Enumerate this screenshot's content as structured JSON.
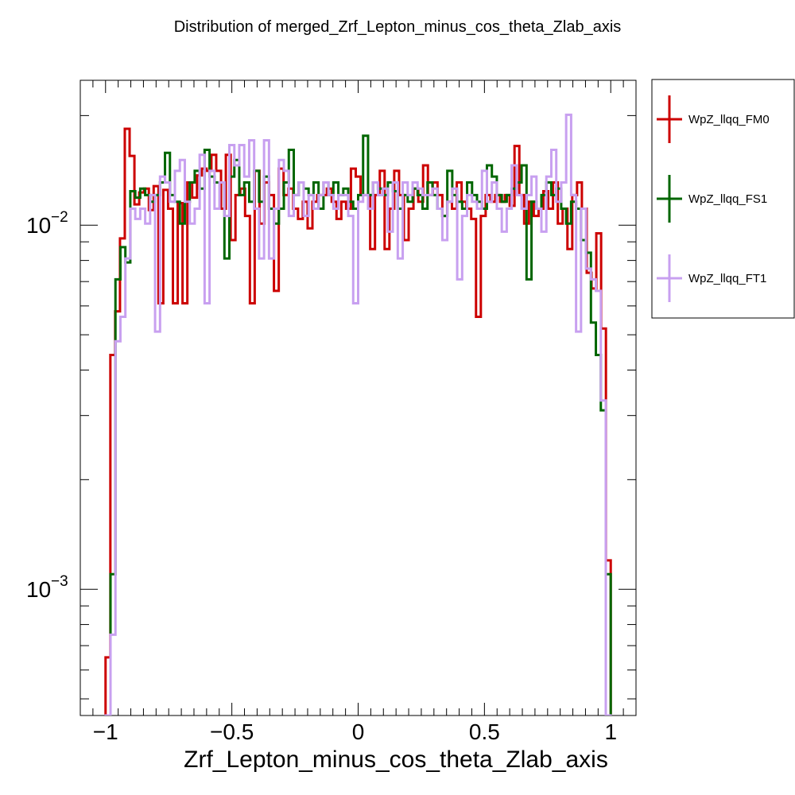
{
  "chart_data": {
    "type": "line",
    "title": "Distribution of merged_Zrf_Lepton_minus_cos_theta_Zlab_axis",
    "xlabel": "Zrf_Lepton_minus_cos_theta_Zlab_axis",
    "ylabel": "",
    "xlim": [
      -1.1,
      1.1
    ],
    "ylim": [
      0.00045,
      0.025
    ],
    "yscale": "log",
    "x_ticks": [
      -1,
      -0.5,
      0,
      0.5,
      1
    ],
    "x_tick_labels": [
      "−1",
      "−0.5",
      "0",
      "0.5",
      "1"
    ],
    "y_tick_labels": [
      {
        "value": 0.01,
        "mantissa": "10",
        "exponent": "−2"
      },
      {
        "value": 0.001,
        "mantissa": "10",
        "exponent": "−3"
      }
    ],
    "bin_range": [
      -1.0,
      1.0
    ],
    "legend_position": "top-right, outside plot",
    "series": [
      {
        "name": "WpZ_llqq_FM0",
        "color": "#cc0000",
        "values": [
          0.00065,
          0.0044,
          0.0058,
          0.0092,
          0.0184,
          0.0155,
          0.0114,
          0.0123,
          0.0126,
          0.011,
          0.0128,
          0.0061,
          0.0125,
          0.0111,
          0.0061,
          0.0115,
          0.0061,
          0.0131,
          0.0119,
          0.0137,
          0.0143,
          0.0141,
          0.0156,
          0.0141,
          0.0111,
          0.0156,
          0.0091,
          0.0121,
          0.0126,
          0.0106,
          0.0061,
          0.0141,
          0.0101,
          0.0131,
          0.0121,
          0.0066,
          0.0143,
          0.0121,
          0.0126,
          0.0111,
          0.0104,
          0.0116,
          0.0098,
          0.0116,
          0.0121,
          0.0121,
          0.0126,
          0.0116,
          0.0104,
          0.0116,
          0.0111,
          0.0143,
          0.0136,
          0.0121,
          0.0121,
          0.0086,
          0.0121,
          0.0141,
          0.0086,
          0.0111,
          0.0141,
          0.0121,
          0.0091,
          0.0111,
          0.0126,
          0.0116,
          0.0146,
          0.0121,
          0.0131,
          0.0121,
          0.0106,
          0.0116,
          0.0111,
          0.0131,
          0.0116,
          0.0111,
          0.0104,
          0.0056,
          0.0106,
          0.0121,
          0.0116,
          0.0121,
          0.0116,
          0.0121,
          0.0113,
          0.0165,
          0.0121,
          0.0101,
          0.0116,
          0.0106,
          0.0111,
          0.0124,
          0.0111,
          0.0131,
          0.0101,
          0.0111,
          0.0086,
          0.0121,
          0.0131,
          0.0111,
          0.0074,
          0.0067,
          0.0095,
          0.0052,
          0.0012
        ]
      },
      {
        "name": "WpZ_llqq_FS1",
        "color": "#006600",
        "values": [
          0.00045,
          0.0011,
          0.0071,
          0.0087,
          0.0079,
          0.0124,
          0.0119,
          0.0126,
          0.0121,
          0.0116,
          0.0121,
          0.0131,
          0.0158,
          0.0121,
          0.0116,
          0.0101,
          0.0116,
          0.0131,
          0.0141,
          0.0126,
          0.0161,
          0.0136,
          0.0131,
          0.0131,
          0.0081,
          0.0136,
          0.0151,
          0.0121,
          0.0131,
          0.0116,
          0.0141,
          0.0116,
          0.0136,
          0.0111,
          0.0101,
          0.0111,
          0.0131,
          0.0161,
          0.0121,
          0.0131,
          0.0126,
          0.0121,
          0.0131,
          0.0111,
          0.0131,
          0.0121,
          0.0131,
          0.0121,
          0.0126,
          0.0116,
          0.0111,
          0.0121,
          0.0176,
          0.0121,
          0.0131,
          0.0126,
          0.0121,
          0.0131,
          0.0124,
          0.0111,
          0.0121,
          0.0116,
          0.0126,
          0.0121,
          0.0111,
          0.0131,
          0.0121,
          0.0111,
          0.0106,
          0.0141,
          0.0121,
          0.0116,
          0.0111,
          0.0131,
          0.0121,
          0.0116,
          0.0111,
          0.0146,
          0.0136,
          0.0121,
          0.0116,
          0.0121,
          0.0126,
          0.0131,
          0.0146,
          0.0071,
          0.0116,
          0.0111,
          0.0121,
          0.0131,
          0.0121,
          0.0126,
          0.0111,
          0.0101,
          0.0116,
          0.0111,
          0.0091,
          0.0084,
          0.0054,
          0.0044,
          0.0031,
          0.0011
        ]
      },
      {
        "name": "WpZ_llqq_FT1",
        "color": "#c8a0f0",
        "values": [
          0.00045,
          0.00075,
          0.0048,
          0.0056,
          0.0081,
          0.0111,
          0.0104,
          0.0111,
          0.0101,
          0.0121,
          0.0051,
          0.0136,
          0.0131,
          0.0116,
          0.0141,
          0.0151,
          0.0116,
          0.0101,
          0.0111,
          0.0156,
          0.0061,
          0.0141,
          0.0111,
          0.0131,
          0.0106,
          0.0166,
          0.0146,
          0.0166,
          0.0136,
          0.0171,
          0.0111,
          0.0081,
          0.0171,
          0.0081,
          0.0111,
          0.0151,
          0.0141,
          0.0106,
          0.0121,
          0.0131,
          0.0106,
          0.0121,
          0.0111,
          0.0121,
          0.0131,
          0.0121,
          0.0111,
          0.0121,
          0.0121,
          0.0106,
          0.0061,
          0.0116,
          0.0121,
          0.0111,
          0.0131,
          0.0121,
          0.0126,
          0.0096,
          0.0131,
          0.0081,
          0.0131,
          0.0121,
          0.0131,
          0.0126,
          0.0121,
          0.0121,
          0.0126,
          0.0111,
          0.0091,
          0.0116,
          0.0126,
          0.0071,
          0.0106,
          0.0121,
          0.0116,
          0.0111,
          0.0141,
          0.0116,
          0.0131,
          0.0111,
          0.0096,
          0.0111,
          0.0146,
          0.0121,
          0.0111,
          0.0121,
          0.0136,
          0.0111,
          0.0096,
          0.0136,
          0.0161,
          0.0116,
          0.0131,
          0.0201,
          0.0121,
          0.0051,
          0.0111,
          0.0076,
          0.0071,
          0.0066,
          0.0033,
          0.00045
        ]
      }
    ]
  }
}
